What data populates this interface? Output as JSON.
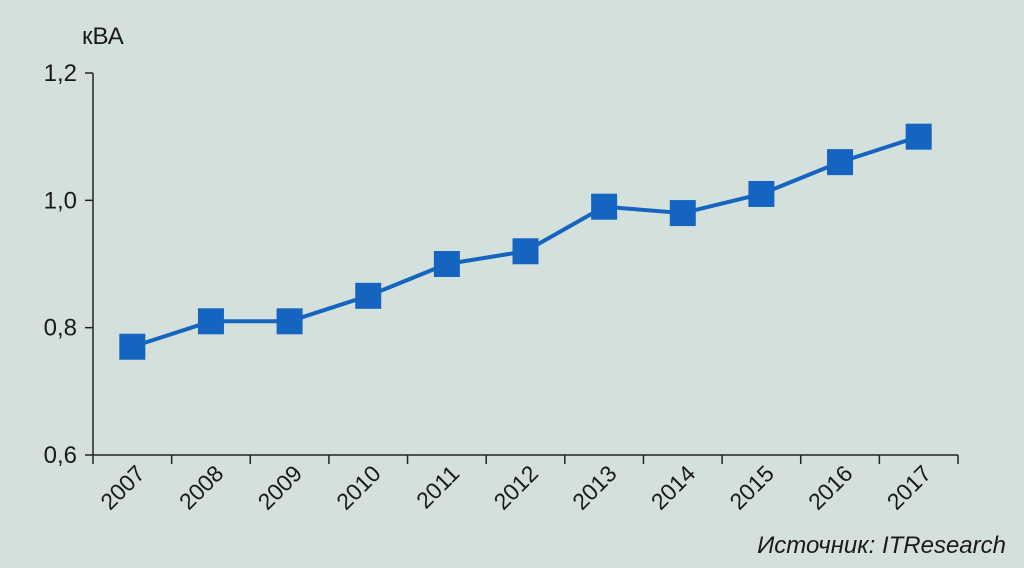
{
  "chart_data": {
    "type": "line",
    "unit_label": "кВА",
    "categories": [
      "2007",
      "2008",
      "2009",
      "2010",
      "2011",
      "2012",
      "2013",
      "2014",
      "2015",
      "2016",
      "2017"
    ],
    "series": [
      {
        "values": [
          0.77,
          0.81,
          0.81,
          0.85,
          0.9,
          0.92,
          0.99,
          0.98,
          1.01,
          1.06,
          1.1
        ]
      }
    ],
    "ylim": [
      0.6,
      1.2
    ],
    "yticks": [
      0.6,
      0.8,
      1.0,
      1.2
    ],
    "ytick_labels": [
      "0,6",
      "0,8",
      "1,0",
      "1,2"
    ],
    "grid": false,
    "marker": "square",
    "series_color": "#1565c0",
    "background_color": "#d4e0dc"
  },
  "source_note": "Источник: ITResearch"
}
